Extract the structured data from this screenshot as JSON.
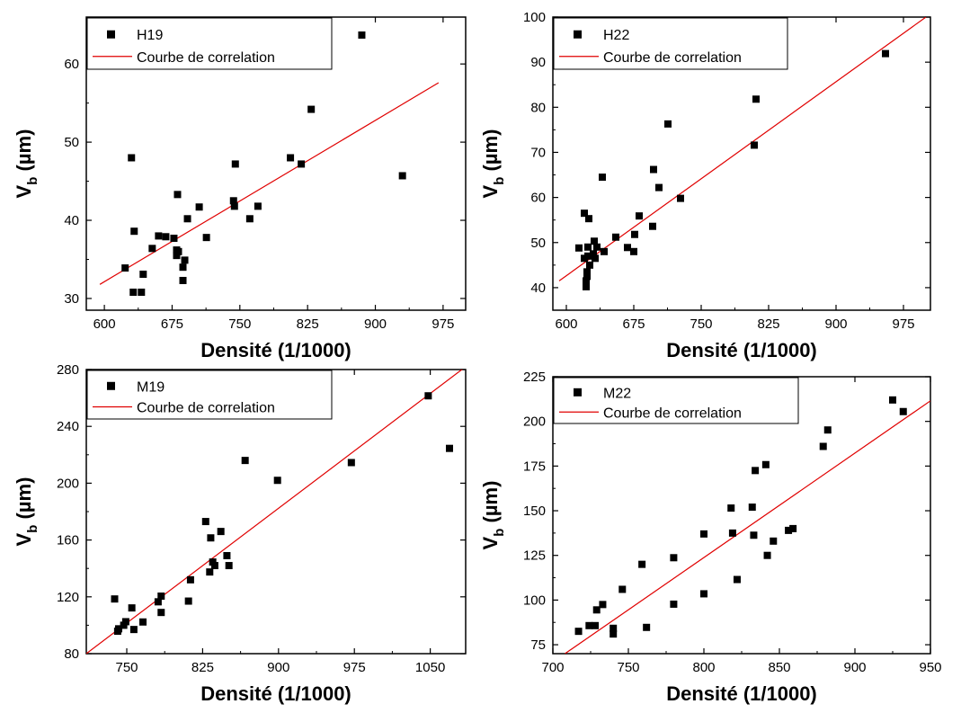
{
  "chart_data": [
    {
      "type": "scatter",
      "legend": {
        "points_label": "H19",
        "line_label": "Courbe de correlation",
        "placement": "top-left"
      },
      "xlabel": "Densité (1/1000)",
      "ylabel": {
        "main": "V",
        "sub": "b",
        "unit": " (µm)"
      },
      "xlim": [
        580,
        1000
      ],
      "ylim": [
        28.5,
        66
      ],
      "xticks": [
        600,
        675,
        750,
        825,
        900,
        975
      ],
      "yticks": [
        30,
        40,
        50,
        60
      ],
      "x": [
        623,
        632,
        630,
        633,
        641,
        643,
        653,
        660,
        668,
        677,
        680,
        680,
        681,
        682,
        687,
        687,
        689,
        692,
        705,
        713,
        743,
        744,
        745,
        761,
        770,
        806,
        818,
        829,
        885,
        930
      ],
      "y": [
        33.9,
        30.8,
        48.0,
        38.6,
        30.8,
        33.1,
        36.4,
        38.0,
        37.9,
        37.7,
        36.2,
        35.5,
        43.3,
        36.0,
        34.0,
        32.3,
        34.9,
        40.2,
        41.7,
        37.8,
        42.5,
        41.8,
        47.2,
        40.2,
        41.8,
        48.0,
        47.2,
        54.2,
        63.7,
        45.7
      ],
      "fit_line": {
        "x": [
          595,
          970
        ],
        "y": [
          31.8,
          57.6
        ]
      }
    },
    {
      "type": "scatter",
      "legend": {
        "points_label": "H22",
        "line_label": "Courbe de correlation",
        "placement": "top-left"
      },
      "xlabel": "Densité (1/1000)",
      "ylabel": {
        "main": "V",
        "sub": "b",
        "unit": " (µm)"
      },
      "xlim": [
        585,
        1005
      ],
      "ylim": [
        35,
        100
      ],
      "xticks": [
        600,
        675,
        750,
        825,
        900,
        975
      ],
      "yticks": [
        40,
        50,
        60,
        70,
        80,
        90,
        100
      ],
      "x": [
        614,
        620,
        620,
        622,
        622,
        623,
        623,
        624,
        624,
        625,
        626,
        630,
        631,
        632,
        634,
        640,
        642,
        655,
        668,
        675,
        676,
        681,
        696,
        697,
        703,
        713,
        727,
        809,
        811,
        955
      ],
      "y": [
        48.8,
        56.5,
        46.5,
        40.2,
        41.5,
        42.5,
        43.5,
        49.0,
        47.0,
        55.3,
        45.0,
        47.5,
        50.3,
        46.5,
        49.0,
        64.5,
        48.0,
        51.2,
        48.9,
        48.0,
        51.8,
        55.9,
        53.6,
        66.2,
        62.2,
        76.3,
        59.8,
        71.6,
        81.8,
        91.9
      ],
      "fit_line": {
        "x": [
          592,
          1000
        ],
        "y": [
          41.5,
          100
        ]
      }
    },
    {
      "type": "scatter",
      "legend": {
        "points_label": "M19",
        "line_label": "Courbe de correlation",
        "placement": "top-left"
      },
      "xlabel": "Densité (1/1000)",
      "ylabel": {
        "main": "V",
        "sub": "b",
        "unit": " (µm)"
      },
      "xlim": [
        710,
        1085
      ],
      "ylim": [
        80,
        280
      ],
      "xticks": [
        750,
        825,
        900,
        975,
        1050
      ],
      "yticks": [
        80,
        120,
        160,
        200,
        240,
        280
      ],
      "x": [
        738,
        741,
        742,
        747,
        749,
        755,
        757,
        766,
        781,
        784,
        784,
        811,
        813,
        828,
        832,
        833,
        835,
        837,
        843,
        849,
        851,
        867,
        899,
        972,
        1048,
        1069
      ],
      "y": [
        118.5,
        95.8,
        97.5,
        100.0,
        102.5,
        112.2,
        97.0,
        102.3,
        116.5,
        109.0,
        120.5,
        117.0,
        132.0,
        173.0,
        137.5,
        161.5,
        144.5,
        142.0,
        166.0,
        149.0,
        142.0,
        216.0,
        202.0,
        214.5,
        261.5,
        224.5
      ],
      "fit_line": {
        "x": [
          710,
          1085
        ],
        "y": [
          80,
          282
        ]
      }
    },
    {
      "type": "scatter",
      "legend": {
        "points_label": "M22",
        "line_label": "Courbe de correlation",
        "placement": "top-left"
      },
      "xlabel": "Densité (1/1000)",
      "ylabel": {
        "main": "V",
        "sub": "b",
        "unit": " (µm)"
      },
      "xlim": [
        700,
        950
      ],
      "ylim": [
        70,
        225
      ],
      "xticks": [
        700,
        750,
        800,
        850,
        900,
        950
      ],
      "yticks": [
        75,
        100,
        125,
        150,
        175,
        200,
        225
      ],
      "x": [
        717,
        724,
        728,
        729,
        733,
        740,
        740,
        746,
        762,
        759,
        780,
        780,
        800,
        800,
        818,
        819,
        822,
        832,
        833,
        834,
        841,
        842,
        846,
        856,
        859,
        879,
        882,
        925,
        932
      ],
      "y": [
        82.5,
        85.7,
        85.7,
        94.5,
        97.5,
        84.2,
        81.0,
        106.0,
        84.7,
        120.0,
        97.7,
        123.7,
        103.5,
        137.0,
        151.5,
        137.5,
        111.5,
        152.0,
        136.3,
        172.5,
        175.8,
        125.0,
        133.0,
        139.0,
        140.0,
        186.0,
        195.2,
        212.0,
        205.5
      ],
      "fit_line": {
        "x": [
          708,
          950
        ],
        "y": [
          70,
          211.5
        ]
      }
    }
  ]
}
